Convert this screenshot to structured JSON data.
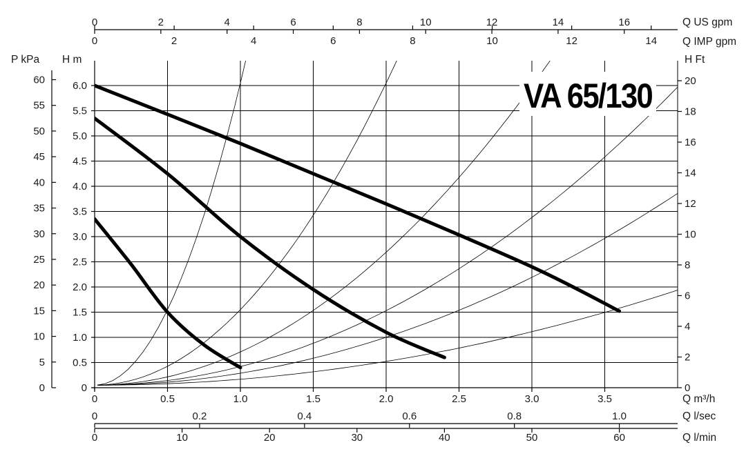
{
  "chart_data": {
    "type": "line",
    "title": "VA 65/130",
    "units": {
      "q_us_gpm": "Q US gpm",
      "q_imp_gpm": "Q IMP gpm",
      "q_m3h": "Q m³/h",
      "q_lsec": "Q l/sec",
      "q_lmin": "Q l/min",
      "p_kpa": "P kPa",
      "h_m": "H m",
      "h_ft": "H Ft"
    },
    "xlim": [
      0,
      4.0
    ],
    "ylim": [
      0,
      6.5
    ],
    "x_ticks": [
      0,
      0.5,
      1.0,
      1.5,
      2.0,
      2.5,
      3.0,
      3.5
    ],
    "x_tick_labels": [
      "0",
      "0.5",
      "1.0",
      "1.5",
      "2.0",
      "2.5",
      "3.0",
      "3.5"
    ],
    "y_ticks": [
      0,
      0.5,
      1.0,
      1.5,
      2.0,
      2.5,
      3.0,
      3.5,
      4.0,
      4.5,
      5.0,
      5.5,
      6.0
    ],
    "y_tick_labels": [
      "0",
      "0.5",
      "1.0",
      "1.5",
      "2.0",
      "2.5",
      "3.0",
      "3.5",
      "4.0",
      "4.5",
      "5.0",
      "5.5",
      "6.0"
    ],
    "kpa_ticks": [
      "0",
      "5",
      "10",
      "15",
      "20",
      "25",
      "30",
      "35",
      "40",
      "45",
      "50",
      "55",
      "60"
    ],
    "kpa_step": 5,
    "kpa_per_m": 9.81,
    "ft_ticks": [
      "0",
      "2",
      "4",
      "6",
      "8",
      "10",
      "12",
      "14",
      "16",
      "18",
      "20"
    ],
    "ft_step": 2,
    "ft_per_m": 3.28084,
    "us_gpm_ticks": [
      "0",
      "2",
      "4",
      "6",
      "8",
      "10",
      "12",
      "14",
      "16"
    ],
    "us_gpm_step": 2,
    "us_gpm_per_m3h": 4.4029,
    "imp_gpm_ticks": [
      "0",
      "2",
      "4",
      "6",
      "8",
      "10",
      "12",
      "14"
    ],
    "imp_gpm_step": 2,
    "imp_gpm_per_m3h": 3.6662,
    "lsec_ticks": [
      "0",
      "0.2",
      "0.4",
      "0.6",
      "0.8",
      "1.0"
    ],
    "lsec_step": 0.2,
    "lsec_per_m3h": 0.27778,
    "lmin_ticks": [
      "0",
      "10",
      "20",
      "30",
      "40",
      "50",
      "60"
    ],
    "lmin_step": 10,
    "lmin_per_m3h": 16.6667,
    "grid": true,
    "series": [
      {
        "x": [
          0,
          0.25,
          0.5,
          0.75,
          1.0
        ],
        "y": [
          3.35,
          2.45,
          1.5,
          0.85,
          0.4
        ]
      },
      {
        "x": [
          0,
          0.5,
          1.0,
          1.5,
          2.0,
          2.4
        ],
        "y": [
          5.35,
          4.25,
          3.0,
          1.95,
          1.1,
          0.6
        ]
      },
      {
        "x": [
          0,
          1.0,
          2.0,
          3.0,
          3.6
        ],
        "y": [
          6.0,
          4.85,
          3.65,
          2.4,
          1.52
        ]
      }
    ],
    "system_curves": [
      {
        "k": 6.0
      },
      {
        "k": 1.5
      },
      {
        "k": 0.66
      },
      {
        "k": 0.37
      },
      {
        "k": 0.238
      },
      {
        "k": 0.118
      }
    ]
  }
}
